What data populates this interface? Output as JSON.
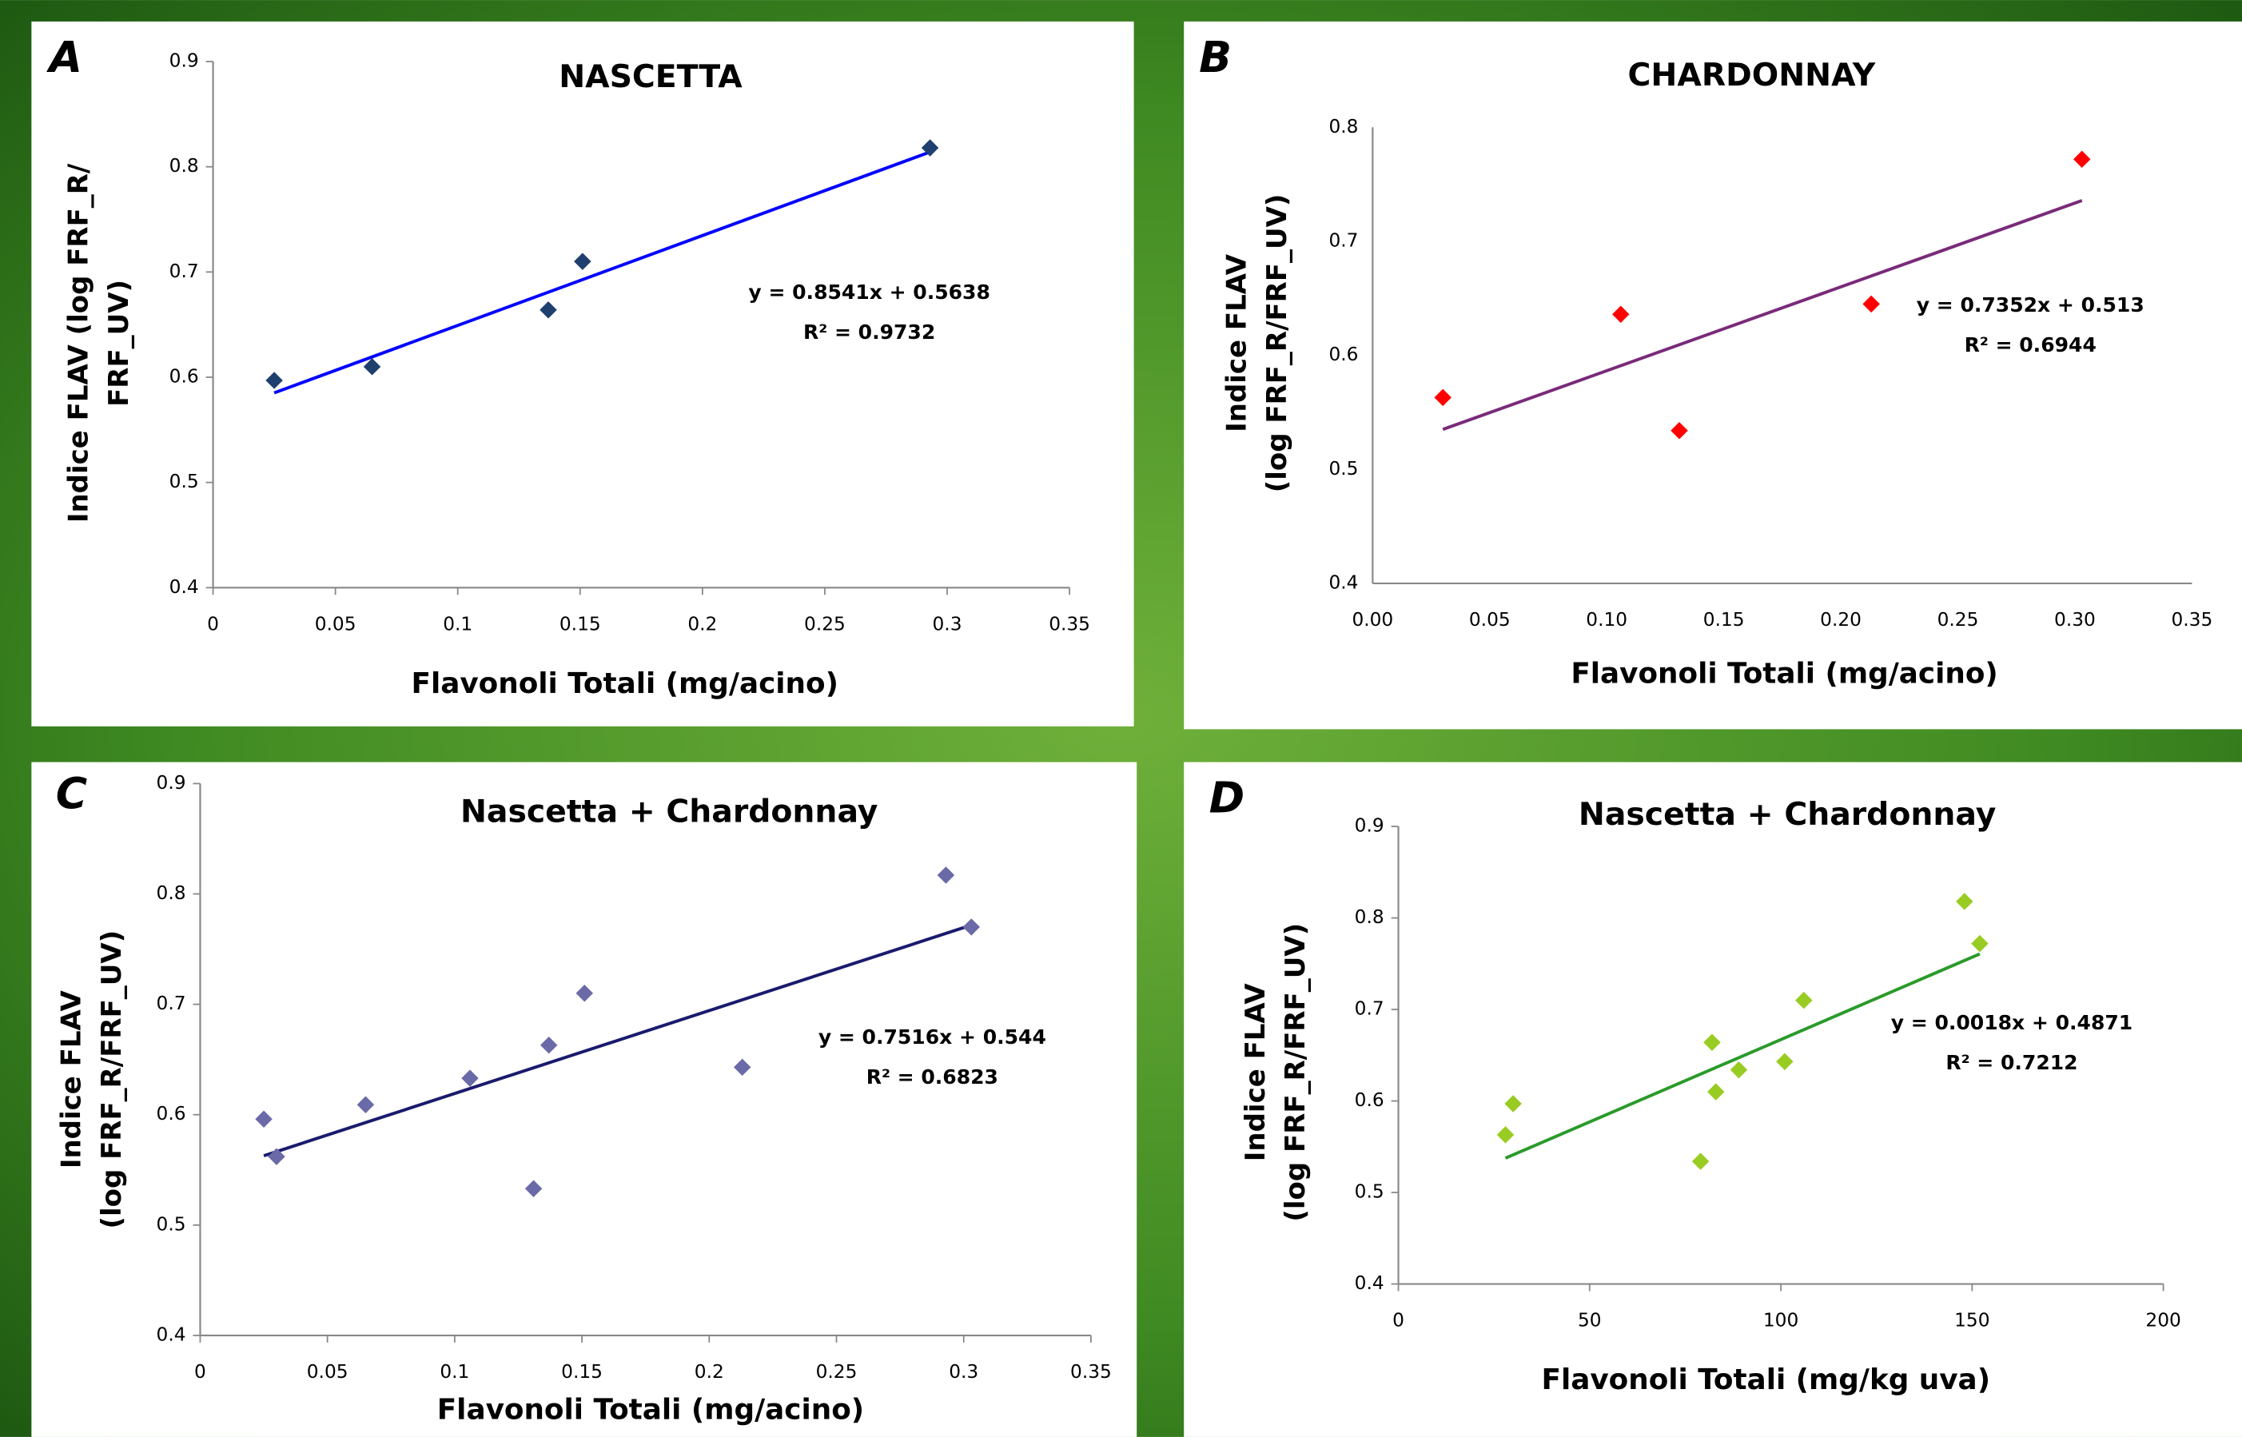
{
  "chart_data": [
    {
      "type": "scatter",
      "panel_label": "A",
      "title": "NASCETTA",
      "x_label": "Flavonoli Totali (mg/acino)",
      "y_label": [
        "Indice FLAV (log FRF_R/",
        "FRF_UV)"
      ],
      "x": [
        0.025,
        0.065,
        0.137,
        0.151,
        0.293
      ],
      "values": [
        0.597,
        0.61,
        0.664,
        0.71,
        0.818
      ],
      "color": "#1f3f6e",
      "trendline": {
        "slope": 0.8541,
        "intercept": 0.5638,
        "color": "#0000ff",
        "equation": "y = 0.8541x + 0.5638",
        "r2": "R² = 0.9732"
      },
      "xlim": [
        0,
        0.35
      ],
      "xticks": [
        0,
        0.05,
        0.1,
        0.15,
        0.2,
        0.25,
        0.3,
        0.35
      ],
      "ylim": [
        0.4,
        0.9
      ],
      "yticks": [
        0.4,
        0.5,
        0.6,
        0.7,
        0.8,
        0.9
      ]
    },
    {
      "type": "scatter",
      "panel_label": "B",
      "title": "CHARDONNAY",
      "x_label": "Flavonoli Totali (mg/acino)",
      "y_label": [
        "Indice FLAV",
        "(log FRF_R/FRF_UV)"
      ],
      "x": [
        0.03,
        0.106,
        0.131,
        0.213,
        0.303
      ],
      "values": [
        0.563,
        0.636,
        0.534,
        0.645,
        0.772
      ],
      "color": "#ff0000",
      "trendline": {
        "slope": 0.7352,
        "intercept": 0.513,
        "color": "#7a2a7a",
        "equation": "y = 0.7352x + 0.513",
        "r2": "R² = 0.6944"
      },
      "xlim": [
        0,
        0.35
      ],
      "xticks": [
        {
          "value": 0,
          "label": "0.00"
        },
        0.05,
        {
          "value": 0.1,
          "label": "0.10"
        },
        0.15,
        {
          "value": 0.2,
          "label": "0.20"
        },
        0.25,
        {
          "value": 0.3,
          "label": "0.30"
        },
        0.35
      ],
      "ylim": [
        0.4,
        0.8
      ],
      "yticks": [
        0.4,
        0.5,
        0.6,
        0.7,
        0.8
      ]
    },
    {
      "type": "scatter",
      "panel_label": "C",
      "title": "Nascetta + Chardonnay",
      "x_label": "Flavonoli Totali (mg/acino)",
      "y_label": [
        "Indice FLAV",
        "(log FRF_R/FRF_UV)"
      ],
      "x": [
        0.025,
        0.03,
        0.065,
        0.106,
        0.131,
        0.137,
        0.151,
        0.213,
        0.293,
        0.303
      ],
      "values": [
        0.596,
        0.562,
        0.609,
        0.633,
        0.533,
        0.663,
        0.71,
        0.643,
        0.817,
        0.77
      ],
      "color": "#6a6aa8",
      "trendline": {
        "slope": 0.7516,
        "intercept": 0.544,
        "color": "#1a1a6e",
        "equation": "y = 0.7516x + 0.544",
        "r2": "R² = 0.6823"
      },
      "xlim": [
        0,
        0.35
      ],
      "xticks": [
        0,
        0.05,
        0.1,
        0.15,
        0.2,
        0.25,
        0.3,
        0.35
      ],
      "ylim": [
        0.4,
        0.9
      ],
      "yticks": [
        0.4,
        0.5,
        0.6,
        0.7,
        0.8,
        0.9
      ]
    },
    {
      "type": "scatter",
      "panel_label": "D",
      "title": "Nascetta + Chardonnay",
      "x_label": "Flavonoli Totali (mg/kg uva)",
      "y_label": [
        "Indice FLAV",
        "(log FRF_R/FRF_UV)"
      ],
      "x": [
        28,
        30,
        79,
        82,
        83,
        89,
        101,
        106,
        148,
        152
      ],
      "values": [
        0.563,
        0.597,
        0.534,
        0.664,
        0.61,
        0.634,
        0.643,
        0.71,
        0.818,
        0.772
      ],
      "color": "#99cc22",
      "trendline": {
        "slope": 0.0018,
        "intercept": 0.4871,
        "color": "#2a9a2a",
        "equation": "y = 0.0018x + 0.4871",
        "r2": "R² = 0.7212"
      },
      "xlim": [
        0,
        200
      ],
      "xticks": [
        0,
        50,
        100,
        150,
        200
      ],
      "ylim": [
        0.4,
        0.9
      ],
      "yticks": [
        0.4,
        0.5,
        0.6,
        0.7,
        0.8,
        0.9
      ]
    }
  ]
}
